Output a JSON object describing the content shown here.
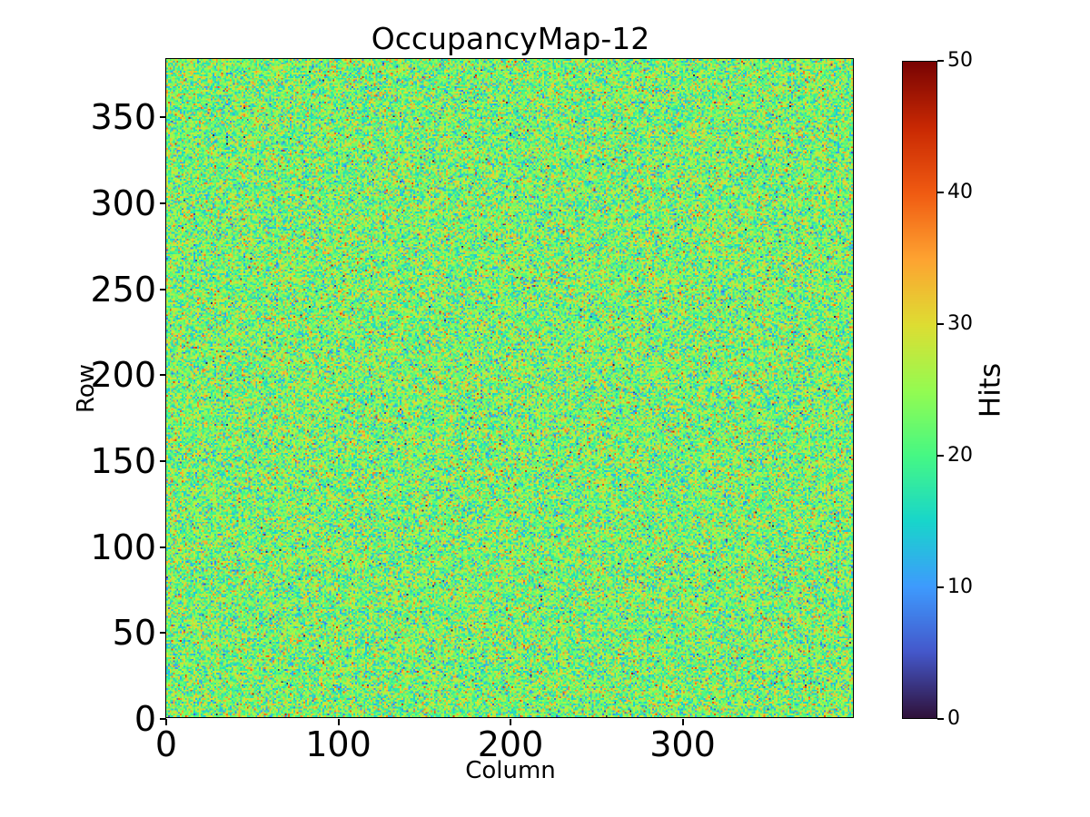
{
  "chart_data": {
    "type": "heatmap",
    "title": "OccupancyMap-12",
    "xlabel": "Column",
    "ylabel": "Row",
    "colorbar_label": "Hits",
    "cols": 400,
    "rows": 384,
    "x_range": [
      0,
      400
    ],
    "y_range": [
      0,
      384
    ],
    "xticks": [
      0,
      100,
      200,
      300
    ],
    "yticks": [
      0,
      50,
      100,
      150,
      200,
      250,
      300,
      350
    ],
    "colorbar_ticks": [
      0,
      10,
      20,
      30,
      40,
      50
    ],
    "vmin": 0,
    "vmax": 50,
    "origin": "lower",
    "grid": false,
    "colormap": "turbo",
    "colormap_stops": [
      "#30123b",
      "#4458cb",
      "#3e9bfe",
      "#18d6cb",
      "#46f884",
      "#95fb51",
      "#dedd32",
      "#fea331",
      "#f05b12",
      "#c92903",
      "#7a0403"
    ],
    "approx_distribution": {
      "kind": "gaussian-noise",
      "mean": 23,
      "std": 6.5,
      "clip": [
        0,
        50
      ],
      "seed": 12345
    }
  },
  "colors": {
    "background": "#ffffff",
    "text": "#000000",
    "spine": "#000000"
  }
}
